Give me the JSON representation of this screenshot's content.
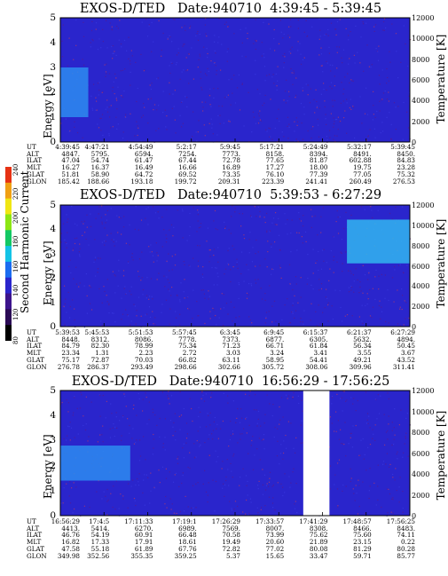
{
  "chart_data": [
    {
      "type": "heatmap",
      "title": "EXOS-D/TED   Date:940710  4:39:45 - 5:39:45",
      "ylabel": "Energy [eV]",
      "y2label": "Temperature [K]",
      "ylim": [
        0,
        5
      ],
      "y2lim": [
        0,
        12000
      ],
      "yticks": [
        "0",
        "1",
        "2",
        "3",
        "4",
        "5"
      ],
      "y2ticks": [
        "0",
        "2000",
        "4000",
        "6000",
        "8000",
        "10000",
        "12000"
      ],
      "background_color": "#2a25cc",
      "features": [
        {
          "label": "enhancement",
          "x_range": [
            0,
            0.08
          ],
          "y_range": [
            1.0,
            3.0
          ],
          "color": "#2d8cf0"
        }
      ],
      "rows": [
        {
          "label": "UT",
          "values": [
            "4:39:45",
            "4:47:21",
            "4:54:49",
            "5:2:17",
            "5:9:45",
            "5:17:21",
            "5:24:49",
            "5:32:17",
            "5:39:45"
          ]
        },
        {
          "label": "ALT",
          "values": [
            "4847.",
            "5795.",
            "6594.",
            "7254.",
            "7773.",
            "8158.",
            "8394.",
            "8491.",
            "8450."
          ]
        },
        {
          "label": "ILAT",
          "values": [
            "47.04",
            "54.74",
            "61.47",
            "67.44",
            "72.78",
            "77.65",
            "81.87",
            "602.88",
            "84.83"
          ]
        },
        {
          "label": "MLT",
          "values": [
            "16.27",
            "16.37",
            "16.49",
            "16.66",
            "16.89",
            "17.27",
            "18.00",
            "19.75",
            "23.28"
          ]
        },
        {
          "label": "GLAT",
          "values": [
            "51.81",
            "58.90",
            "64.72",
            "69.52",
            "73.35",
            "76.10",
            "77.39",
            "77.05",
            "75.32"
          ]
        },
        {
          "label": "GLON",
          "values": [
            "185.42",
            "188.66",
            "193.18",
            "199.72",
            "209.31",
            "223.39",
            "241.41",
            "260.49",
            "276.53"
          ]
        }
      ]
    },
    {
      "type": "heatmap",
      "title": "EXOS-D/TED   Date:940710  5:39:53 - 6:27:29",
      "ylabel": "Energy [eV]",
      "y2label": "Temperature [K]",
      "ylim": [
        0,
        5
      ],
      "y2lim": [
        0,
        12000
      ],
      "yticks": [
        "0",
        "1",
        "2",
        "3",
        "4",
        "5"
      ],
      "y2ticks": [
        "0",
        "2000",
        "4000",
        "6000",
        "8000",
        "10000",
        "12000"
      ],
      "background_color": "#2a25cc",
      "features": [
        {
          "label": "enhancement",
          "x_range": [
            0.82,
            1.0
          ],
          "y_range": [
            2.6,
            4.4
          ],
          "color": "#31b6f0"
        }
      ],
      "rows": [
        {
          "label": "UT",
          "values": [
            "5:39:53",
            "5:45:53",
            "5:51:53",
            "5:57:45",
            "6:3:45",
            "6:9:45",
            "6:15:37",
            "6:21:37",
            "6:27:29"
          ]
        },
        {
          "label": "ALT",
          "values": [
            "8448.",
            "8312.",
            "8086.",
            "7778.",
            "7373.",
            "6877.",
            "6305.",
            "5632.",
            "4894."
          ]
        },
        {
          "label": "ILAT",
          "values": [
            "84.79",
            "82.30",
            "78.99",
            "75.34",
            "71.23",
            "66.71",
            "61.84",
            "56.34",
            "50.45"
          ]
        },
        {
          "label": "MLT",
          "values": [
            "23.34",
            "1.31",
            "2.23",
            "2.72",
            "3.03",
            "3.24",
            "3.41",
            "3.55",
            "3.67"
          ]
        },
        {
          "label": "GLAT",
          "values": [
            "75.17",
            "72.87",
            "70.03",
            "66.82",
            "63.11",
            "58.95",
            "54.41",
            "49.21",
            "43.52"
          ]
        },
        {
          "label": "GLON",
          "values": [
            "276.78",
            "286.37",
            "293.49",
            "298.66",
            "302.66",
            "305.72",
            "308.06",
            "309.96",
            "311.41"
          ]
        }
      ]
    },
    {
      "type": "heatmap",
      "title": "EXOS-D/TED   Date:940710  16:56:29 - 17:56:25",
      "ylabel": "Energy [eV]",
      "y2label": "Temperature [K]",
      "ylim": [
        0,
        5
      ],
      "y2lim": [
        0,
        12000
      ],
      "yticks": [
        "0",
        "1",
        "2",
        "3",
        "4",
        "5"
      ],
      "y2ticks": [
        "0",
        "2000",
        "4000",
        "6000",
        "8000",
        "10000",
        "12000"
      ],
      "background_color": "#2a25cc",
      "features": [
        {
          "label": "enhancement",
          "x_range": [
            0,
            0.2
          ],
          "y_range": [
            1.4,
            2.8
          ],
          "color": "#2d8cf0"
        },
        {
          "label": "data gap",
          "x_range": [
            0.695,
            0.77
          ],
          "y_range": [
            0,
            5
          ],
          "color": "#ffffff"
        }
      ],
      "rows": [
        {
          "label": "UT",
          "values": [
            "16:56:29",
            "17:4:5",
            "17:11:33",
            "17:19:1",
            "17:26:29",
            "17:33:57",
            "17:41:29",
            "17:48:57",
            "17:56:25"
          ]
        },
        {
          "label": "ALT",
          "values": [
            "4413.",
            "5414.",
            "6270.",
            "6989.",
            "7569.",
            "8007.",
            "8308.",
            "8466.",
            "8483."
          ]
        },
        {
          "label": "ILAT",
          "values": [
            "46.76",
            "54.19",
            "60.91",
            "66.48",
            "70.58",
            "73.99",
            "75.62",
            "75.60",
            "74.11"
          ]
        },
        {
          "label": "MLT",
          "values": [
            "16.82",
            "17.33",
            "17.91",
            "18.61",
            "19.49",
            "20.60",
            "21.89",
            "23.15",
            "0.22"
          ]
        },
        {
          "label": "GLAT",
          "values": [
            "47.58",
            "55.18",
            "61.89",
            "67.76",
            "72.82",
            "77.02",
            "80.08",
            "81.29",
            "80.28"
          ]
        },
        {
          "label": "GLON",
          "values": [
            "349.98",
            "352.56",
            "355.35",
            "359.25",
            "5.37",
            "15.65",
            "33.47",
            "59.71",
            "85.77"
          ]
        }
      ]
    }
  ],
  "colorbar": {
    "label": "Second Harmonic Current",
    "ticks": [
      "80",
      "120",
      "140",
      "160",
      "180",
      "200",
      "220",
      "240"
    ],
    "colors": [
      "#000000",
      "#2a0a55",
      "#3c148c",
      "#2a25cc",
      "#1b6cf0",
      "#14c3e6",
      "#14c864",
      "#8ce614",
      "#f0e614",
      "#f0a014",
      "#e63214"
    ]
  }
}
